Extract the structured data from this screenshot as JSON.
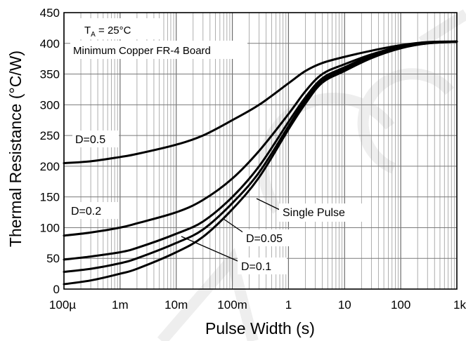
{
  "chart_data": {
    "type": "line",
    "xlabel": "Pulse Width (s)",
    "ylabel": "Thermal Resistance (°C/W)",
    "x_scale": "log",
    "xlim": [
      0.0001,
      1000
    ],
    "ylim": [
      0,
      450
    ],
    "x_ticks": [
      {
        "value": 0.0001,
        "label": "100µ"
      },
      {
        "value": 0.001,
        "label": "1m"
      },
      {
        "value": 0.01,
        "label": "10m"
      },
      {
        "value": 0.1,
        "label": "100m"
      },
      {
        "value": 1,
        "label": "1"
      },
      {
        "value": 10,
        "label": "10"
      },
      {
        "value": 100,
        "label": "100"
      },
      {
        "value": 1000,
        "label": "1k"
      }
    ],
    "y_ticks": [
      0,
      50,
      100,
      150,
      200,
      250,
      300,
      350,
      400,
      450
    ],
    "grid": true,
    "annotations": {
      "ta_main": "T",
      "ta_sub": "A",
      "ta_rest": " = 25°C",
      "board": "Minimum Copper FR-4 Board"
    },
    "series": [
      {
        "name": "D=0.5",
        "x": [
          0.0001,
          0.0003,
          0.001,
          0.002,
          0.01,
          0.03,
          0.1,
          0.3,
          1,
          2,
          4,
          10,
          30,
          100,
          300,
          1000
        ],
        "values": [
          205,
          208,
          215,
          220,
          235,
          250,
          275,
          300,
          335,
          355,
          368,
          378,
          388,
          397,
          402,
          403
        ]
      },
      {
        "name": "D=0.2",
        "x": [
          0.0001,
          0.0003,
          0.001,
          0.002,
          0.01,
          0.03,
          0.1,
          0.3,
          1,
          2,
          4,
          10,
          30,
          100,
          300,
          1000
        ],
        "values": [
          87,
          92,
          100,
          107,
          125,
          145,
          180,
          225,
          285,
          322,
          350,
          366,
          382,
          395,
          401,
          403
        ]
      },
      {
        "name": "D=0.1",
        "x": [
          0.0001,
          0.0003,
          0.001,
          0.002,
          0.01,
          0.03,
          0.1,
          0.3,
          1,
          2,
          4,
          10,
          30,
          100,
          300,
          1000
        ],
        "values": [
          48,
          53,
          60,
          67,
          90,
          110,
          150,
          200,
          272,
          312,
          343,
          361,
          380,
          394,
          401,
          403
        ]
      },
      {
        "name": "D=0.05",
        "x": [
          0.0001,
          0.0003,
          0.001,
          0.002,
          0.01,
          0.03,
          0.1,
          0.3,
          1,
          2,
          4,
          10,
          30,
          100,
          300,
          1000
        ],
        "values": [
          28,
          33,
          42,
          50,
          75,
          97,
          140,
          190,
          265,
          307,
          339,
          358,
          378,
          393,
          400,
          403
        ]
      },
      {
        "name": "Single Pulse",
        "x": [
          0.0001,
          0.0003,
          0.001,
          0.002,
          0.01,
          0.03,
          0.1,
          0.3,
          1,
          2,
          4,
          10,
          30,
          100,
          300,
          1000
        ],
        "values": [
          8,
          14,
          25,
          33,
          60,
          85,
          130,
          182,
          260,
          302,
          336,
          355,
          376,
          392,
          400,
          403
        ]
      }
    ],
    "series_labels": {
      "d05": "D=0.5",
      "d02": "D=0.2",
      "single": "Single Pulse",
      "d005": "D=0.05",
      "d01": "D=0.1"
    }
  }
}
